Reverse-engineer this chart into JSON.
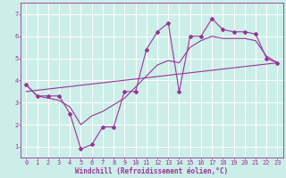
{
  "xlabel": "Windchill (Refroidissement éolien,°C)",
  "background_color": "#cceee8",
  "grid_color": "#ffffff",
  "line_color": "#993399",
  "xlim": [
    -0.5,
    23.5
  ],
  "ylim": [
    0.5,
    7.5
  ],
  "xticks": [
    0,
    1,
    2,
    3,
    4,
    5,
    6,
    7,
    8,
    9,
    10,
    11,
    12,
    13,
    14,
    15,
    16,
    17,
    18,
    19,
    20,
    21,
    22,
    23
  ],
  "yticks": [
    1,
    2,
    3,
    4,
    5,
    6,
    7
  ],
  "series1_x": [
    0,
    1,
    2,
    3,
    4,
    5,
    6,
    7,
    8,
    9,
    10,
    11,
    12,
    13,
    14,
    15,
    16,
    17,
    18,
    19,
    20,
    21,
    22,
    23
  ],
  "series1_y": [
    3.8,
    3.3,
    3.3,
    3.3,
    2.5,
    0.9,
    1.1,
    1.9,
    1.9,
    3.5,
    3.5,
    5.4,
    6.2,
    6.6,
    3.5,
    6.0,
    6.0,
    6.8,
    6.3,
    6.2,
    6.2,
    6.1,
    5.0,
    4.8
  ],
  "series2_x": [
    0,
    1,
    2,
    3,
    4,
    5,
    6,
    7,
    8,
    9,
    10,
    11,
    12,
    13,
    14,
    15,
    16,
    17,
    18,
    19,
    20,
    21,
    22,
    23
  ],
  "series2_y": [
    3.8,
    3.3,
    3.2,
    3.1,
    2.8,
    2.0,
    2.4,
    2.6,
    2.9,
    3.2,
    3.7,
    4.2,
    4.7,
    4.9,
    4.8,
    5.5,
    5.8,
    6.0,
    5.9,
    5.9,
    5.9,
    5.8,
    5.1,
    4.8
  ],
  "series3_x": [
    0,
    23
  ],
  "series3_y": [
    3.5,
    4.8
  ],
  "font_size_tick": 5.0,
  "font_size_label": 5.5,
  "marker_size": 2.0,
  "line_width": 0.8
}
